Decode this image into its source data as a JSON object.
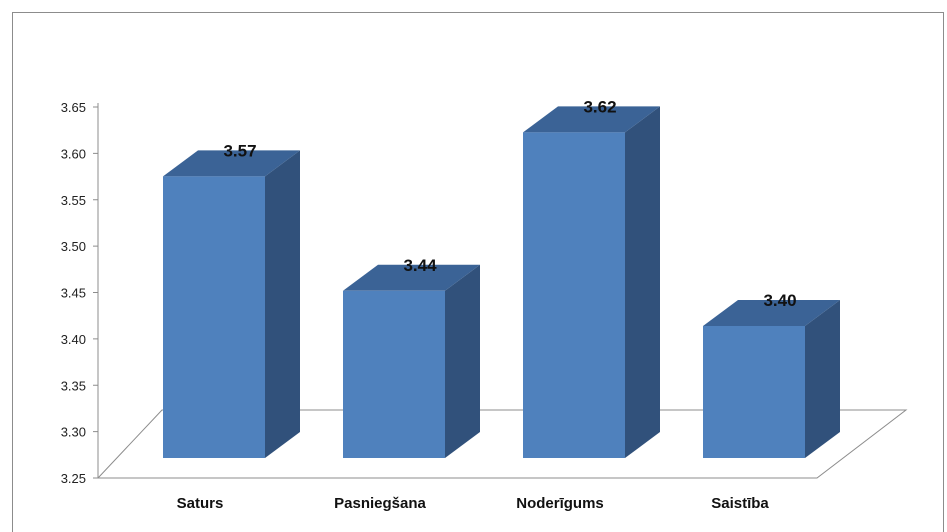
{
  "chart_data": {
    "type": "bar",
    "categories": [
      "Saturs",
      "Pasniegšana",
      "Noderīgums",
      "Saistība"
    ],
    "values": [
      3.57,
      3.44,
      3.62,
      3.4
    ],
    "value_labels": [
      "3.57",
      "3.44",
      "3.62",
      "3.40"
    ],
    "title": "",
    "xlabel": "",
    "ylabel": "",
    "ylim": [
      3.25,
      3.65
    ],
    "yticks": [
      "3.25",
      "3.30",
      "3.35",
      "3.40",
      "3.45",
      "3.50",
      "3.55",
      "3.60",
      "3.65"
    ],
    "grid": false,
    "legend": "none",
    "style": "3d-column",
    "colors": {
      "bar_front": "#4f81bd",
      "bar_side": "#31517b",
      "bar_top": "#3b6396",
      "floor_line": "#8c8c8c"
    }
  }
}
